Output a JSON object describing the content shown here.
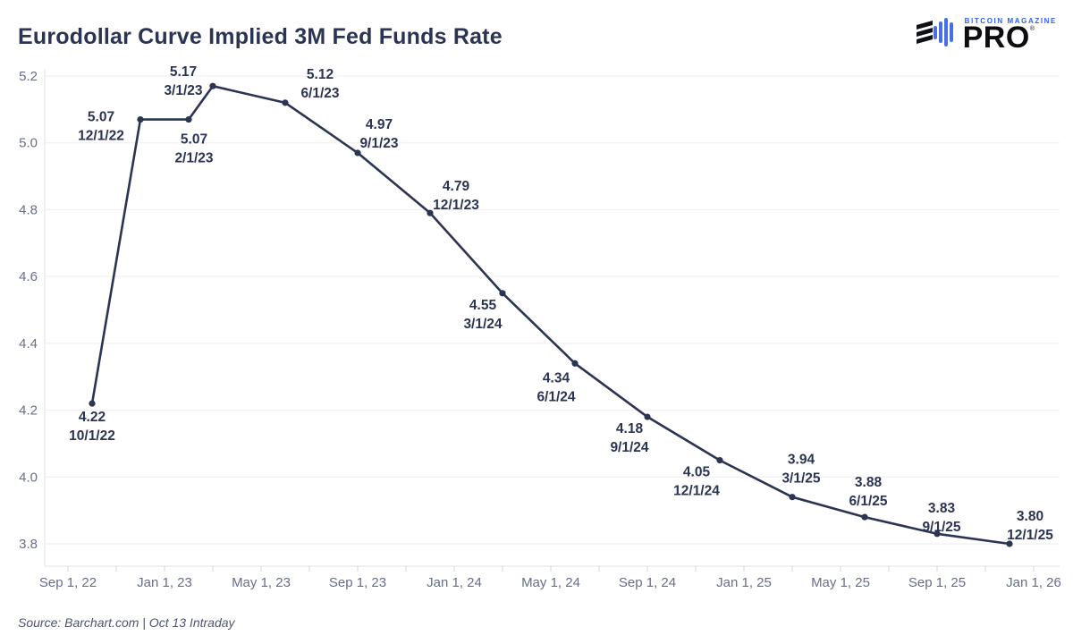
{
  "header": {
    "title": "Eurodollar Curve Implied 3M Fed Funds Rate",
    "logo": {
      "brand_top": "BITCOIN MAGAZINE",
      "brand_main": "PRO",
      "registered_mark": "®",
      "brand_blue": "#3560e8",
      "brand_black": "#0c0d11"
    }
  },
  "footer": {
    "source_note": "Source: Barchart.com | Oct 13 Intraday"
  },
  "chart_data": {
    "type": "line",
    "title": "Eurodollar Curve Implied 3M Fed Funds Rate",
    "x": [
      "10/1/22",
      "12/1/22",
      "2/1/23",
      "3/1/23",
      "6/1/23",
      "9/1/23",
      "12/1/23",
      "3/1/24",
      "6/1/24",
      "9/1/24",
      "12/1/24",
      "3/1/25",
      "6/1/25",
      "9/1/25",
      "12/1/25"
    ],
    "values": [
      4.22,
      5.07,
      5.07,
      5.17,
      5.12,
      4.97,
      4.79,
      4.55,
      4.34,
      4.18,
      4.05,
      3.94,
      3.88,
      3.83,
      3.8
    ],
    "x_tick_labels": [
      "Sep 1, 22",
      "Jan 1, 23",
      "May 1, 23",
      "Sep 1, 23",
      "Jan 1, 24",
      "May 1, 24",
      "Sep 1, 24",
      "Jan 1, 25",
      "May 1, 25",
      "Sep 1, 25",
      "Jan 1, 26"
    ],
    "y_ticks": [
      3.8,
      4.0,
      4.2,
      4.4,
      4.6,
      4.8,
      5.0,
      5.2
    ],
    "ylim": [
      3.73,
      5.24
    ],
    "xlabel": "",
    "ylabel": "",
    "grid": "horizontal-only",
    "legend": "none",
    "line_color": "#2b3453",
    "point_label_color": "#2b3453",
    "axis_label_color": "#666e8a",
    "grid_color": "#ededf2",
    "axis_line_color": "#e2e2e9",
    "tick_color": "#d5d5de",
    "background": "#ffffff"
  }
}
